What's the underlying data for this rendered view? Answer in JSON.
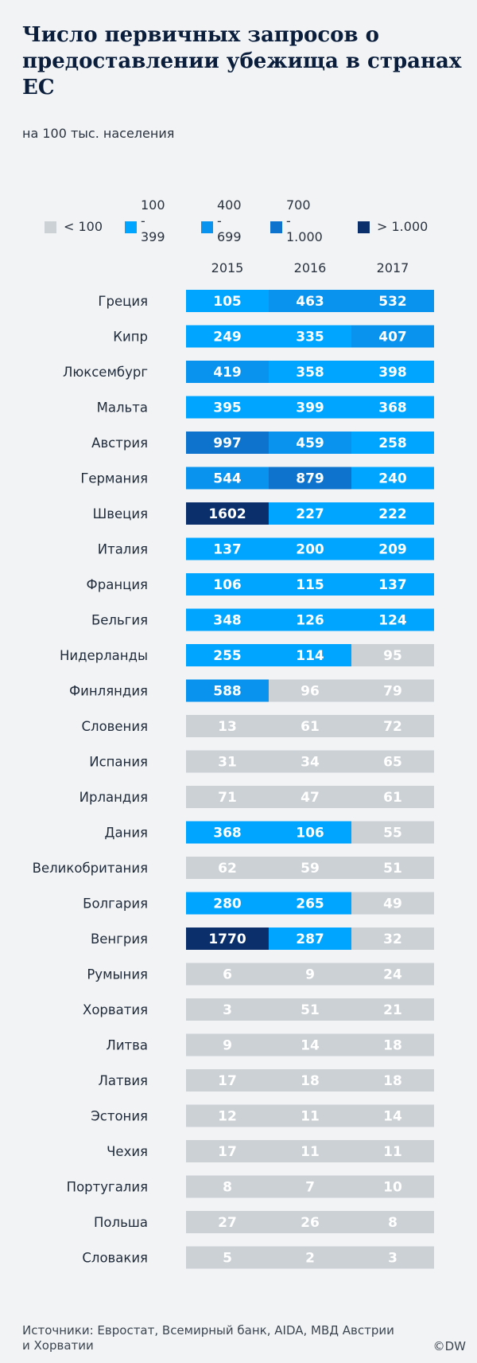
{
  "title": "Число первичных запросов о предоставлении убежища в странах ЕС",
  "subtitle": "на 100 тыс. населения",
  "legend": [
    {
      "label": "< 100",
      "color": "#ccd1d6"
    },
    {
      "label": "100 - 399",
      "color": "#00a5ff"
    },
    {
      "label": "400 - 699",
      "color": "#0993ee"
    },
    {
      "label": "700 - 1.000",
      "color": "#0d73cc"
    },
    {
      "label": "> 1.000",
      "color": "#0a2f6b"
    }
  ],
  "source": "Источники: Евростат, Всемирный банк, AIDA, МВД Австрии и Хорватии",
  "logo": "©DW",
  "chart_data": {
    "type": "table",
    "columns": [
      "2015",
      "2016",
      "2017"
    ],
    "rows": [
      {
        "country": "Греция",
        "values": [
          105,
          463,
          532
        ]
      },
      {
        "country": "Кипр",
        "values": [
          249,
          335,
          407
        ]
      },
      {
        "country": "Люксембург",
        "values": [
          419,
          358,
          398
        ]
      },
      {
        "country": "Мальта",
        "values": [
          395,
          399,
          368
        ]
      },
      {
        "country": "Австрия",
        "values": [
          997,
          459,
          258
        ]
      },
      {
        "country": "Германия",
        "values": [
          544,
          879,
          240
        ]
      },
      {
        "country": "Швеция",
        "values": [
          1602,
          227,
          222
        ]
      },
      {
        "country": "Италия",
        "values": [
          137,
          200,
          209
        ]
      },
      {
        "country": "Франция",
        "values": [
          106,
          115,
          137
        ]
      },
      {
        "country": "Бельгия",
        "values": [
          348,
          126,
          124
        ]
      },
      {
        "country": "Нидерланды",
        "values": [
          255,
          114,
          95
        ]
      },
      {
        "country": "Финляндия",
        "values": [
          588,
          96,
          79
        ]
      },
      {
        "country": "Словения",
        "values": [
          13,
          61,
          72
        ]
      },
      {
        "country": "Испания",
        "values": [
          31,
          34,
          65
        ]
      },
      {
        "country": "Ирландия",
        "values": [
          71,
          47,
          61
        ]
      },
      {
        "country": "Дания",
        "values": [
          368,
          106,
          55
        ]
      },
      {
        "country": "Великобритания",
        "values": [
          62,
          59,
          51
        ]
      },
      {
        "country": "Болгария",
        "values": [
          280,
          265,
          49
        ]
      },
      {
        "country": "Венгрия",
        "values": [
          1770,
          287,
          32
        ]
      },
      {
        "country": "Румыния",
        "values": [
          6,
          9,
          24
        ]
      },
      {
        "country": "Хорватия",
        "values": [
          3,
          51,
          21
        ]
      },
      {
        "country": "Литва",
        "values": [
          9,
          14,
          18
        ]
      },
      {
        "country": "Латвия",
        "values": [
          17,
          18,
          18
        ]
      },
      {
        "country": "Эстония",
        "values": [
          12,
          11,
          14
        ]
      },
      {
        "country": "Чехия",
        "values": [
          17,
          11,
          11
        ]
      },
      {
        "country": "Португалия",
        "values": [
          8,
          7,
          10
        ]
      },
      {
        "country": "Польша",
        "values": [
          27,
          26,
          8
        ]
      },
      {
        "country": "Словакия",
        "values": [
          5,
          2,
          3
        ]
      }
    ],
    "color_scale": [
      {
        "min": 0,
        "max": 100,
        "color": "#ccd1d6",
        "text_color": "#ffffff"
      },
      {
        "min": 100,
        "max": 400,
        "color": "#00a5ff",
        "text_color": "#ffffff"
      },
      {
        "min": 400,
        "max": 700,
        "color": "#0993ee",
        "text_color": "#ffffff"
      },
      {
        "min": 700,
        "max": 1000,
        "color": "#0d73cc",
        "text_color": "#ffffff"
      },
      {
        "min": 1000,
        "max": 100000,
        "color": "#0a2f6b",
        "text_color": "#ffffff"
      }
    ]
  }
}
